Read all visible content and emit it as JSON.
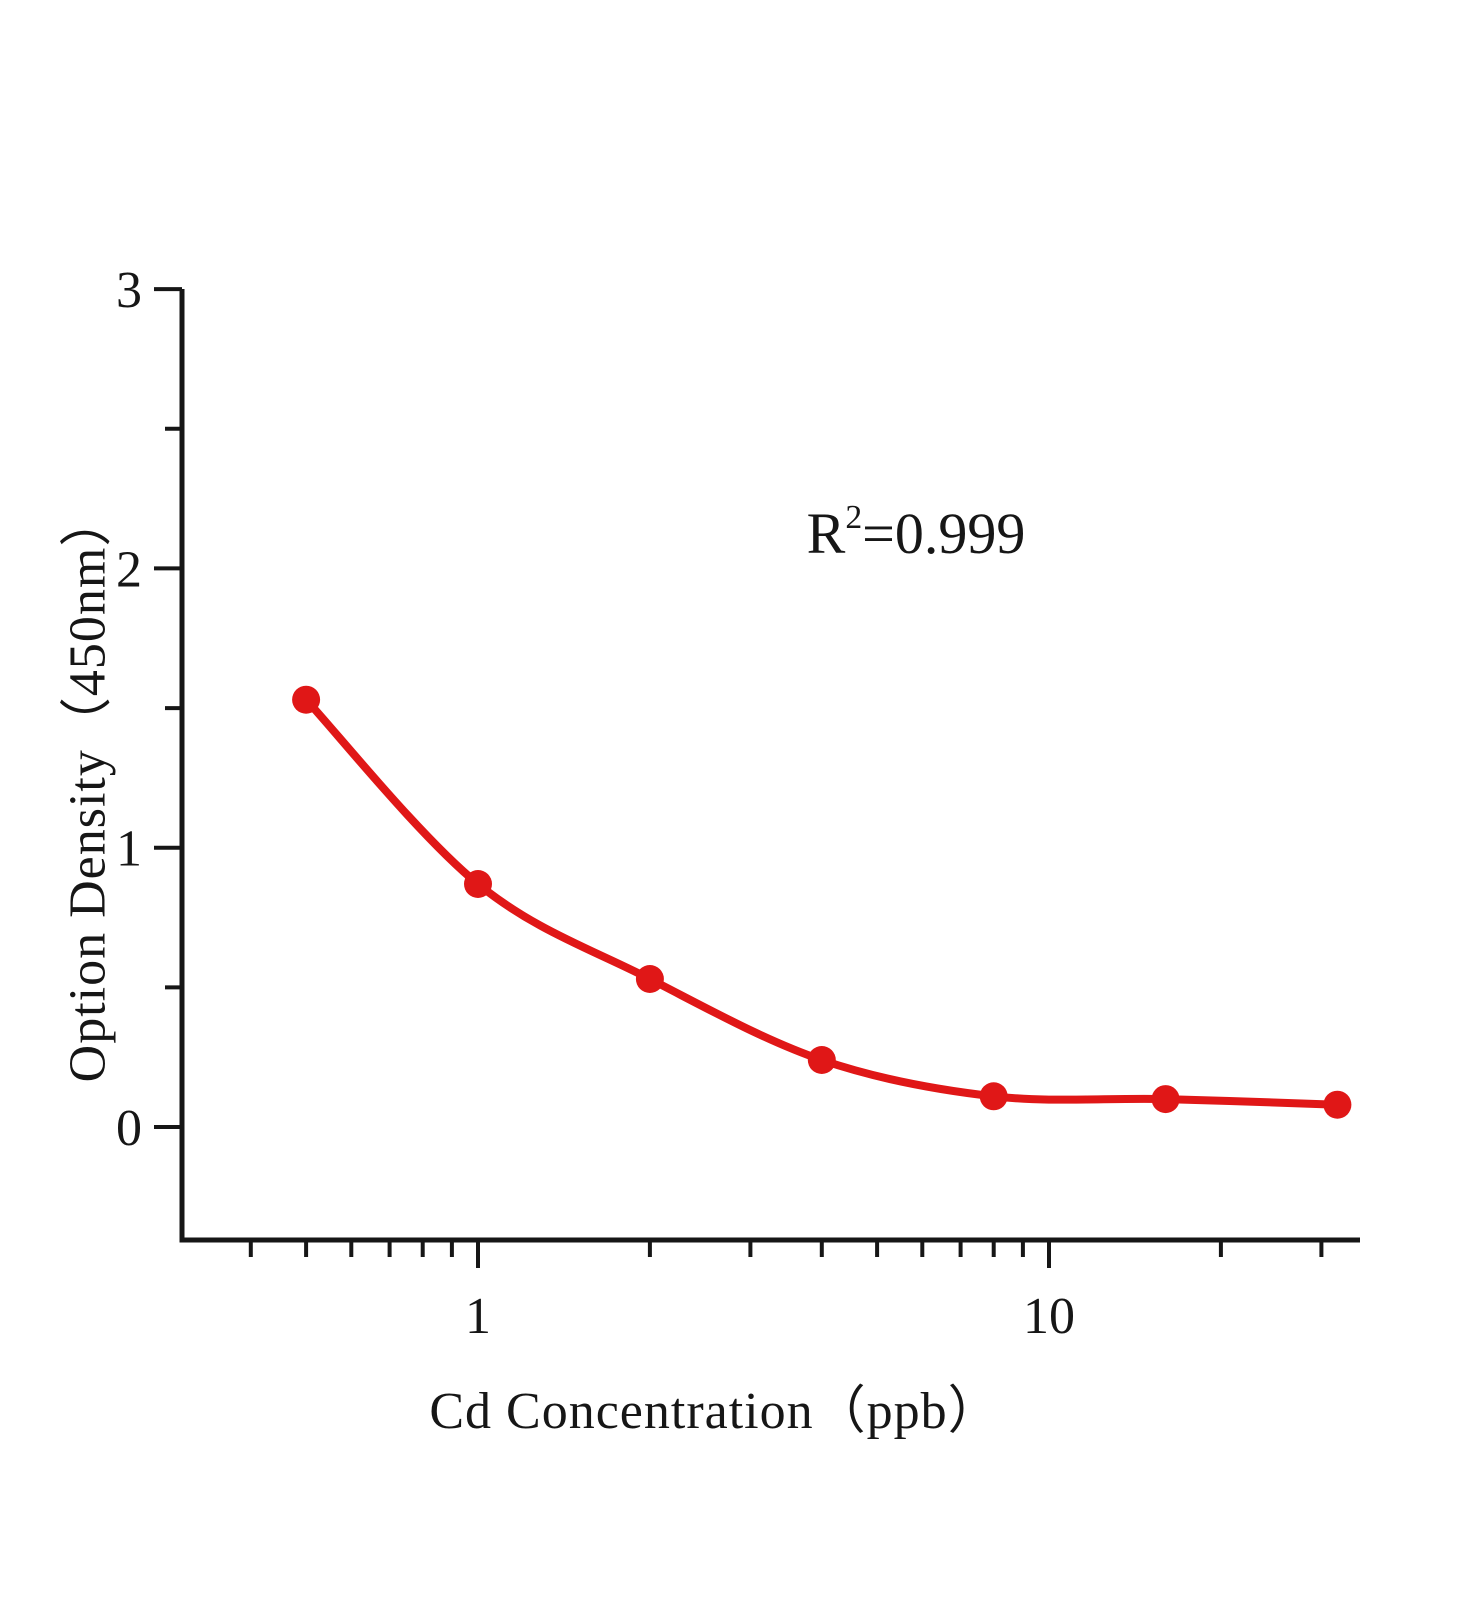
{
  "figure": {
    "background": "#ffffff",
    "ink_color": "#161616",
    "accent_red": "#e01717"
  },
  "annotation": {
    "r2_base": "R",
    "r2_sup": "2",
    "r2_rest": "=0.999"
  },
  "chart_data": {
    "type": "scatter",
    "title": "",
    "xlabel": "Cd Concentration（ppb）",
    "ylabel": "Option Density（450nm）",
    "x_scale": "log10",
    "y_scale": "linear",
    "x": [
      0.5,
      1,
      2,
      4,
      8,
      16,
      32
    ],
    "y": [
      1.53,
      0.87,
      0.53,
      0.24,
      0.11,
      0.1,
      0.08
    ],
    "fit_curve": "smooth decreasing curve through all points (4PL-style standard curve)",
    "r_squared": 0.999,
    "x_tick_labels": [
      "1",
      "10"
    ],
    "x_ticks_major": [
      1,
      10
    ],
    "x_ticks_minor": [
      0.4,
      0.5,
      0.6,
      0.7,
      0.8,
      0.9,
      2,
      3,
      4,
      5,
      6,
      7,
      8,
      9,
      20,
      30
    ],
    "y_tick_labels": [
      "0",
      "1",
      "2",
      "3"
    ],
    "y_ticks_major": [
      0,
      1,
      2,
      3
    ],
    "y_ticks_minor": [
      0.5,
      1.5,
      2.5
    ],
    "xlim": [
      0.3,
      35
    ],
    "ylim": [
      -0.4,
      3
    ],
    "grid": "off",
    "legend": "none",
    "marker_color": "#e01717",
    "line_color": "#e01717"
  }
}
